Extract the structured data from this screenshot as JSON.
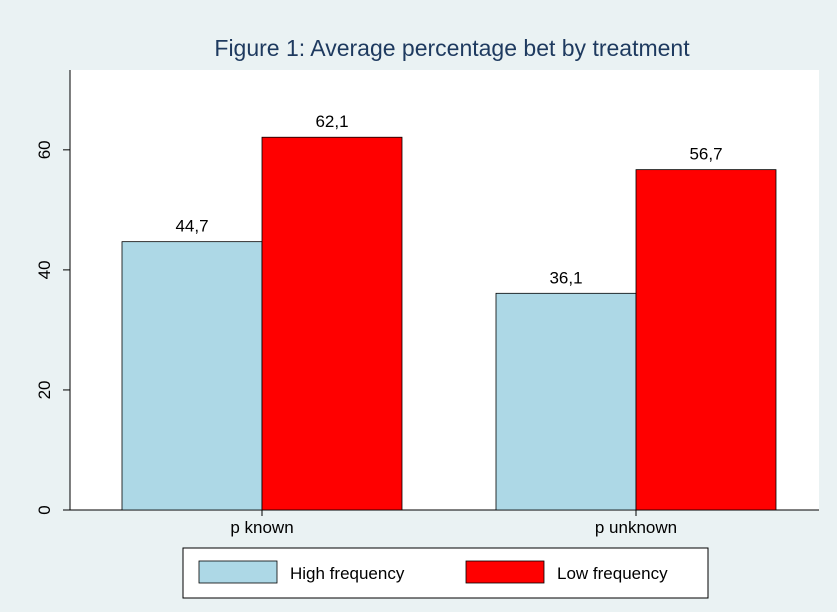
{
  "chart_data": {
    "type": "bar",
    "title": "Figure 1: Average percentage bet by treatment",
    "categories": [
      "p known",
      "p unknown"
    ],
    "series": [
      {
        "name": "High frequency",
        "color": "#add8e6",
        "values": [
          44.7,
          36.1
        ],
        "value_labels": [
          "44,7",
          "36,1"
        ]
      },
      {
        "name": "Low frequency",
        "color": "#ff0000",
        "values": [
          62.1,
          56.7
        ],
        "value_labels": [
          "62,1",
          "56,7"
        ]
      }
    ],
    "ylim": [
      0,
      73.3
    ],
    "yticks": [
      0,
      20,
      40,
      60
    ],
    "grid": false,
    "legend": "bottom"
  }
}
